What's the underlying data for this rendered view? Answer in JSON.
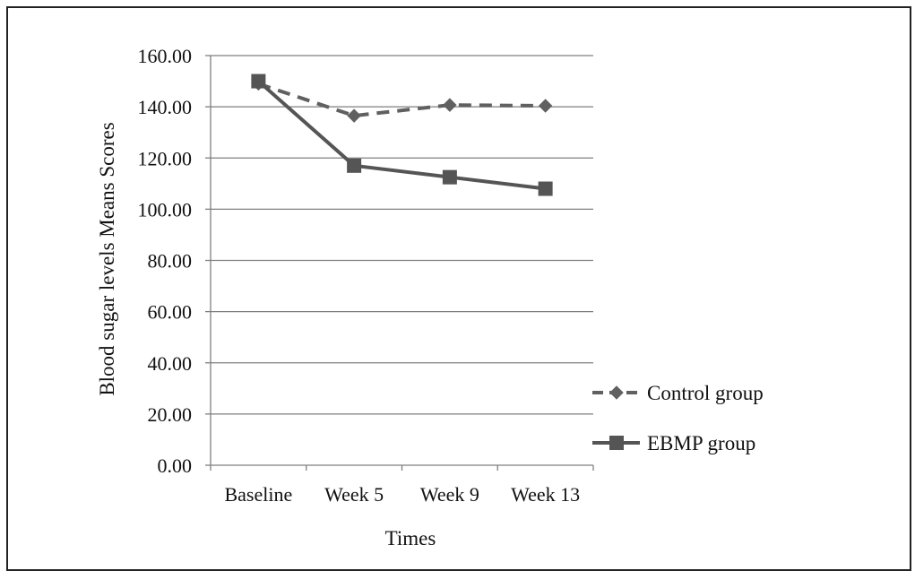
{
  "chart_data": {
    "type": "line",
    "title": "",
    "xlabel": "Times",
    "ylabel": "Blood sugar levels Means Scores",
    "categories": [
      "Baseline",
      "Week 5",
      "Week 9",
      "Week 13"
    ],
    "ylim": [
      0,
      160
    ],
    "ytick_labels": [
      "0.00",
      "20.00",
      "40.00",
      "60.00",
      "80.00",
      "100.00",
      "120.00",
      "140.00",
      "160.00"
    ],
    "grid": true,
    "legend_position": "right",
    "series": [
      {
        "name": "Control group",
        "values": [
          149,
          136.5,
          140.7,
          140.4
        ],
        "color": "#606060",
        "line_style": "dashed",
        "marker": "diamond"
      },
      {
        "name": "EBMP group",
        "values": [
          150,
          117,
          112.5,
          108
        ],
        "color": "#555555",
        "line_style": "solid",
        "marker": "square"
      }
    ]
  }
}
